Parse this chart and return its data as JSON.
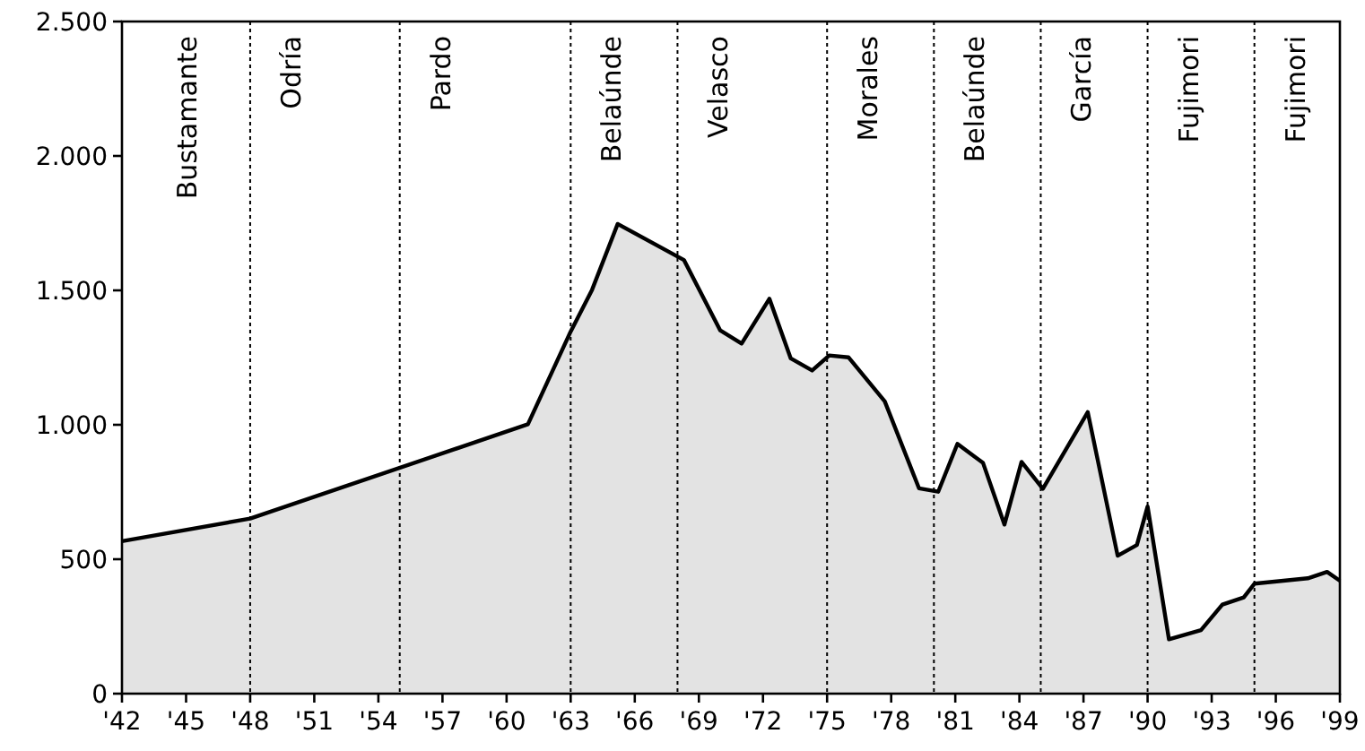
{
  "chart_data": {
    "type": "area",
    "x": [
      1942,
      1948,
      1961,
      1963,
      1964,
      1965.2,
      1968.3,
      1970,
      1971,
      1972.3,
      1973.3,
      1974.3,
      1975.1,
      1976,
      1977.7,
      1979.3,
      1980.2,
      1981.1,
      1982.3,
      1983.3,
      1984.1,
      1985.1,
      1987.2,
      1988.6,
      1989.5,
      1990,
      1991,
      1992.5,
      1993.5,
      1994.5,
      1995,
      1997.5,
      1998.4,
      1999
    ],
    "series": [
      {
        "color": "#e3e3e3",
        "values": [
          567,
          651,
          1002,
          1347,
          1502,
          1747,
          1613,
          1351,
          1302,
          1469,
          1247,
          1202,
          1258,
          1251,
          1087,
          764,
          751,
          929,
          858,
          629,
          862,
          762,
          1047,
          513,
          553,
          696,
          202,
          236,
          331,
          358,
          409,
          429,
          453,
          420
        ]
      }
    ],
    "xlim": [
      1942,
      1999
    ],
    "xticks": [
      {
        "value": 1942,
        "label": "'42"
      },
      {
        "value": 1945,
        "label": "'45"
      },
      {
        "value": 1948,
        "label": "'48"
      },
      {
        "value": 1951,
        "label": "'51"
      },
      {
        "value": 1954,
        "label": "'54"
      },
      {
        "value": 1957,
        "label": "'57"
      },
      {
        "value": 1960,
        "label": "'60"
      },
      {
        "value": 1963,
        "label": "'63"
      },
      {
        "value": 1966,
        "label": "'66"
      },
      {
        "value": 1969,
        "label": "'69"
      },
      {
        "value": 1972,
        "label": "'72"
      },
      {
        "value": 1975,
        "label": "'75"
      },
      {
        "value": 1978,
        "label": "'78"
      },
      {
        "value": 1981,
        "label": "'81"
      },
      {
        "value": 1984,
        "label": "'84"
      },
      {
        "value": 1987,
        "label": "'87"
      },
      {
        "value": 1990,
        "label": "'90"
      },
      {
        "value": 1993,
        "label": "'93"
      },
      {
        "value": 1996,
        "label": "'96"
      },
      {
        "value": 1999,
        "label": "'99"
      }
    ],
    "ylim": [
      0,
      2500
    ],
    "yticks": [
      0,
      500,
      {
        "value": 1000,
        "label": "1.000"
      },
      {
        "value": 1500,
        "label": "1.500"
      },
      {
        "value": 2000,
        "label": "2.000"
      },
      {
        "value": 2500,
        "label": "2.500"
      }
    ],
    "grid": false,
    "annotations": [
      "Bustamante"
    ],
    "ref_lines": [
      {
        "axis": "x",
        "value": 1948,
        "line_style": "dotted",
        "label": "Odría"
      },
      {
        "axis": "x",
        "value": 1955,
        "line_style": "dotted",
        "label": "Pardo"
      },
      {
        "axis": "x",
        "value": 1963,
        "line_style": "dotted",
        "label": "Belaúnde"
      },
      {
        "axis": "x",
        "value": 1968,
        "line_style": "dotted",
        "label": "Velasco"
      },
      {
        "axis": "x",
        "value": 1975,
        "line_style": "dotted",
        "label": "Morales"
      },
      {
        "axis": "x",
        "value": 1980,
        "line_style": "dotted",
        "label": "Belaúnde"
      },
      {
        "axis": "x",
        "value": 1985,
        "line_style": "dotted",
        "label": "García"
      },
      {
        "axis": "x",
        "value": 1990,
        "line_style": "dotted",
        "label": "Fujimori"
      },
      {
        "axis": "x",
        "value": 1995,
        "line_style": "dotted",
        "label": "Fujimori"
      }
    ]
  }
}
